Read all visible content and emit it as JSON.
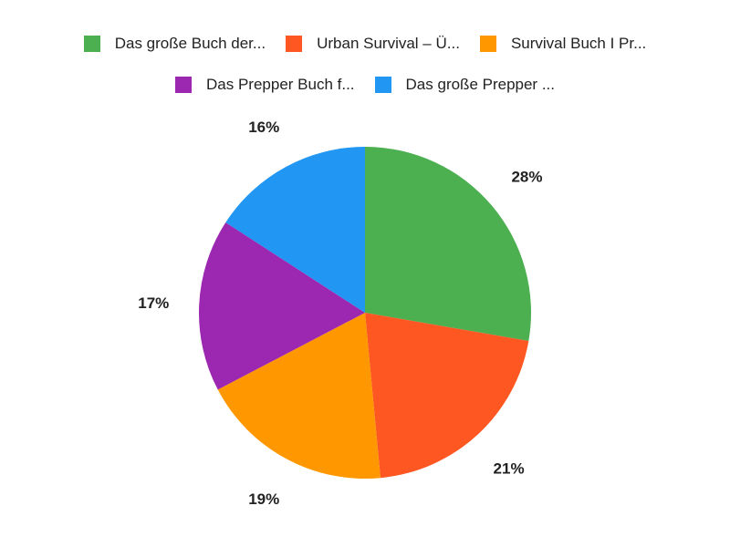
{
  "chart_data": {
    "type": "pie",
    "legend_position": "top",
    "series": [
      {
        "name": "Das große Buch der...",
        "value": 28,
        "label": "28%",
        "color": "#4caf50"
      },
      {
        "name": "Urban Survival – Ü...",
        "value": 21,
        "label": "21%",
        "color": "#ff5722"
      },
      {
        "name": "Survival Buch I Pr...",
        "value": 19,
        "label": "19%",
        "color": "#ff9800"
      },
      {
        "name": "Das Prepper Buch f...",
        "value": 17,
        "label": "17%",
        "color": "#9c27b0"
      },
      {
        "name": "Das große Prepper ...",
        "value": 16,
        "label": "16%",
        "color": "#2196f3"
      }
    ]
  }
}
